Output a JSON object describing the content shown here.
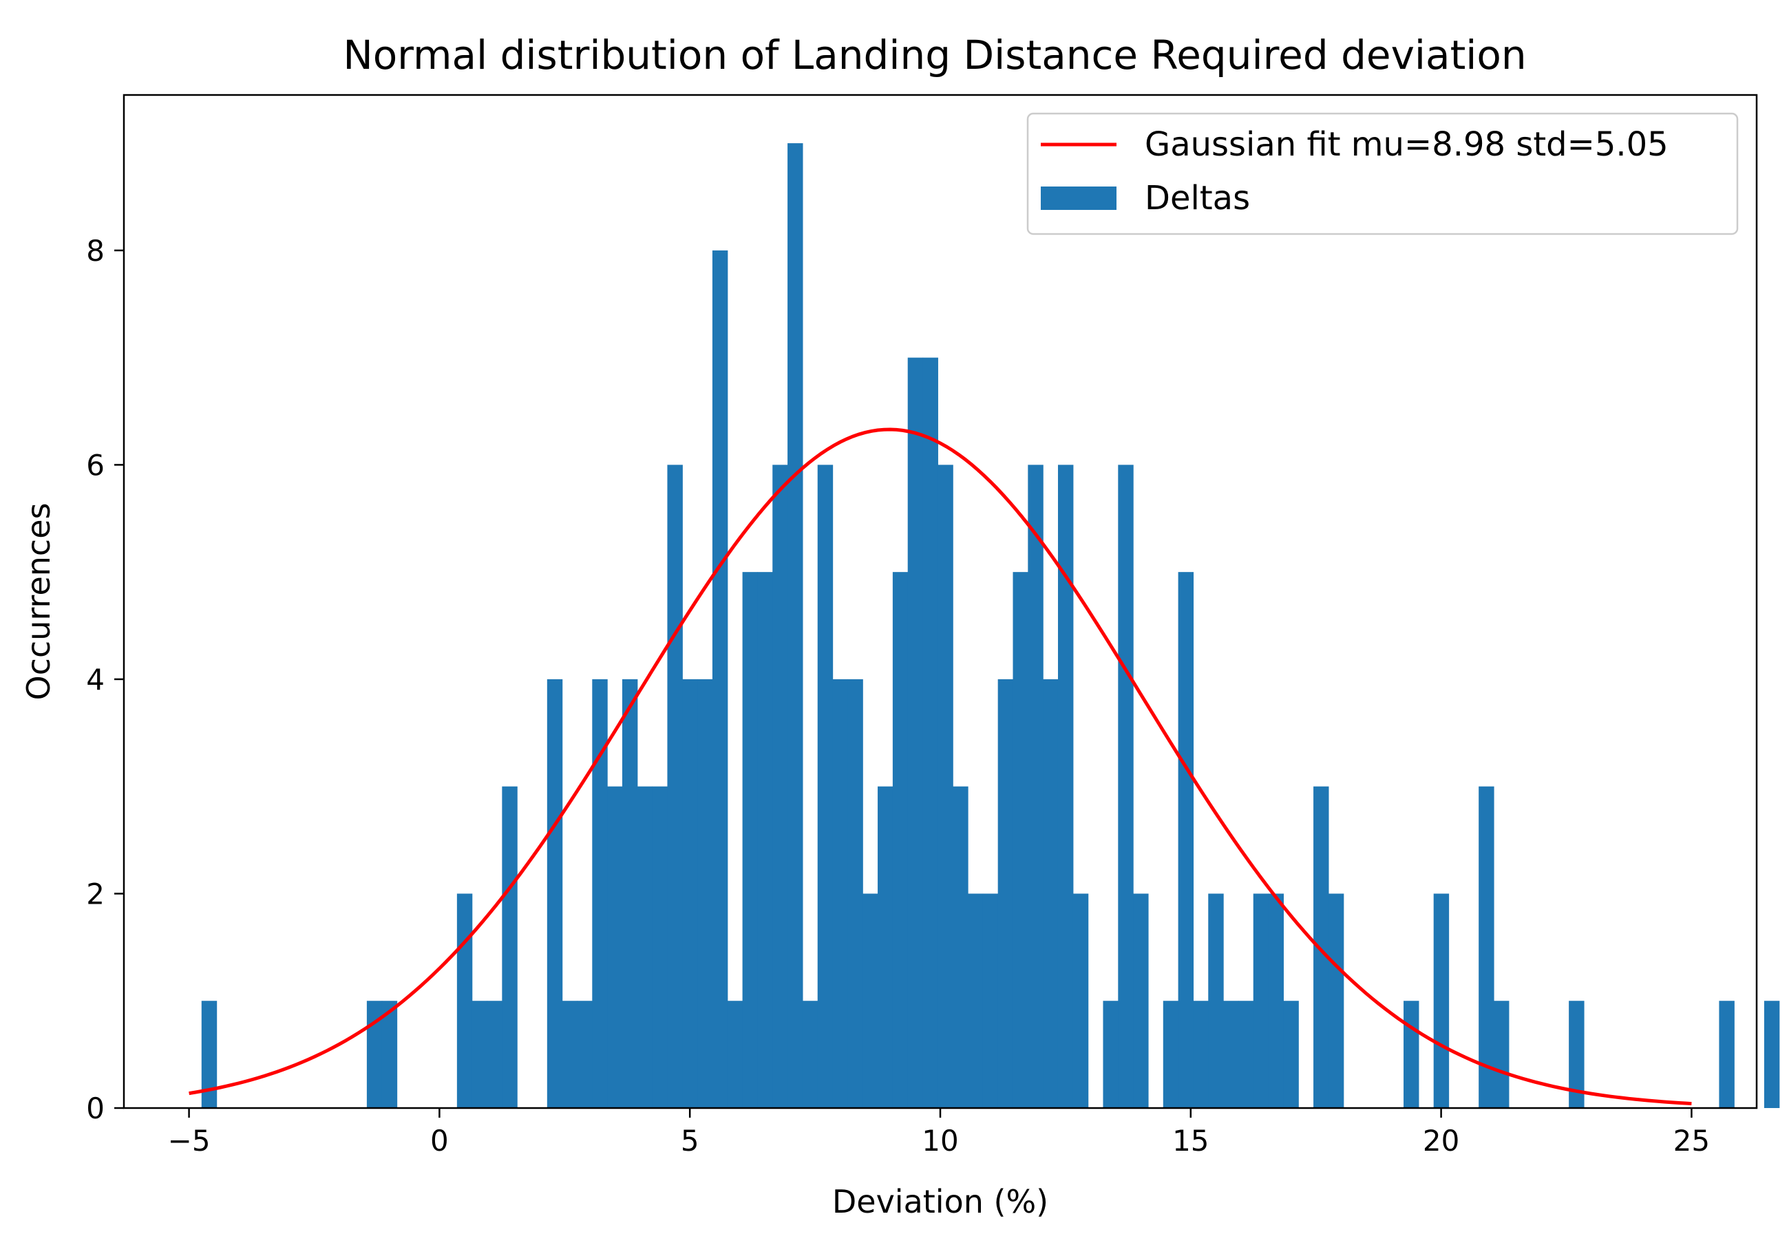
{
  "chart_data": {
    "type": "bar",
    "subtype": "histogram with fitted curve",
    "title": "Normal distribution of Landing Distance Required deviation",
    "xlabel": "Deviation (%)",
    "ylabel": "Occurrences",
    "xlim": [
      -6.3,
      26.3
    ],
    "ylim": [
      0,
      9.45
    ],
    "x_ticks": [
      -5,
      0,
      5,
      10,
      15,
      20,
      25
    ],
    "x_tick_labels": [
      "−5",
      "0",
      "5",
      "10",
      "15",
      "20",
      "25"
    ],
    "y_ticks": [
      0,
      2,
      4,
      6,
      8
    ],
    "y_tick_labels": [
      "0",
      "2",
      "4",
      "6",
      "8"
    ],
    "grid": false,
    "legend_position": "top-right",
    "series": [
      {
        "name": "Deltas",
        "kind": "histogram",
        "color": "#1f77b4",
        "bin_start": -4.75,
        "bin_width": 0.3,
        "bin_counts": [
          1,
          0,
          0,
          0,
          0,
          0,
          0,
          0,
          0,
          0,
          0,
          1,
          1,
          0,
          0,
          0,
          0,
          2,
          1,
          1,
          3,
          0,
          0,
          4,
          1,
          1,
          4,
          3,
          4,
          3,
          3,
          6,
          4,
          4,
          8,
          1,
          5,
          5,
          6,
          9,
          1,
          6,
          4,
          4,
          2,
          3,
          5,
          7,
          7,
          6,
          3,
          2,
          2,
          4,
          5,
          6,
          4,
          6,
          2,
          0,
          1,
          6,
          2,
          0,
          1,
          5,
          1,
          2,
          1,
          1,
          2,
          2,
          1,
          0,
          3,
          2,
          0,
          0,
          0,
          0,
          1,
          0,
          2,
          0,
          0,
          3,
          1,
          0,
          0,
          0,
          0,
          1,
          0,
          0,
          0,
          0,
          0,
          0,
          0,
          0,
          0,
          1,
          0,
          0,
          1
        ]
      },
      {
        "name": "Gaussian fit mu=8.98 std=5.05",
        "kind": "gaussian_fit",
        "color": "#ff0000",
        "mu": 8.98,
        "std": 5.05,
        "peak": 6.33,
        "x_range": [
          -5,
          25
        ]
      }
    ]
  }
}
